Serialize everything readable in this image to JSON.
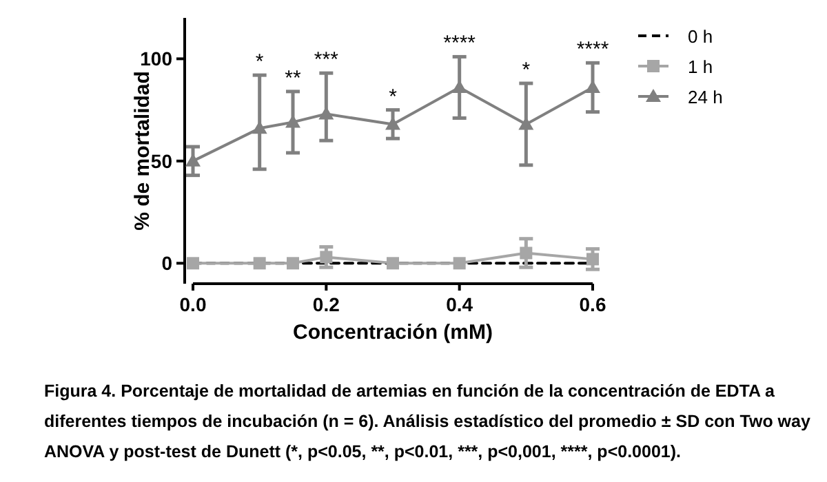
{
  "chart_data": {
    "type": "line",
    "xlabel": "Concentración (mM)",
    "ylabel": "% de mortalidad",
    "x": [
      0,
      0.1,
      0.15,
      0.2,
      0.3,
      0.4,
      0.5,
      0.6
    ],
    "xlim": [
      0,
      0.6
    ],
    "xticks": [
      {
        "value": 0,
        "label": "0.0"
      },
      {
        "value": 0.2,
        "label": "0.2"
      },
      {
        "value": 0.4,
        "label": "0.4"
      },
      {
        "value": 0.6,
        "label": "0.6"
      }
    ],
    "ylim": [
      -10,
      120
    ],
    "yticks": [
      0,
      50,
      100
    ],
    "series": [
      {
        "name": "0 h",
        "color": "#000000",
        "values": [
          0,
          0,
          0,
          0,
          0,
          0,
          0,
          0
        ],
        "marker": "none",
        "line_style": "dashed"
      },
      {
        "name": "1 h",
        "color": "#a6a6a6",
        "values": [
          0,
          0,
          0,
          3,
          0,
          0,
          5,
          2
        ],
        "errors": [
          null,
          null,
          null,
          5,
          null,
          null,
          7,
          5
        ],
        "marker": "square",
        "line_style": "solid"
      },
      {
        "name": "24 h",
        "color": "#808080",
        "values": [
          50,
          66,
          69,
          73,
          68,
          86,
          68,
          86
        ],
        "errors": [
          7,
          [
            46,
            92
          ],
          15,
          [
            60,
            93
          ],
          7,
          15,
          20,
          12
        ],
        "marker": "triangle",
        "line_style": "solid"
      }
    ],
    "legend": "right",
    "grid": false,
    "annotations": [
      {
        "text": "*",
        "x": 0.1,
        "y": 66
      },
      {
        "text": "**",
        "x": 0.15,
        "y": 69
      },
      {
        "text": "***",
        "x": 0.2,
        "y": 73
      },
      {
        "text": "*",
        "x": 0.3,
        "y": 68
      },
      {
        "text": "****",
        "x": 0.4,
        "y": 86
      },
      {
        "text": "*",
        "x": 0.5,
        "y": 68
      },
      {
        "text": "****",
        "x": 0.6,
        "y": 86
      },
      "Figura 4. Porcentaje de mortalidad de artemias en función de la concentración de EDTA a diferentes tiempos de incubación (n = 6). Análisis estadístico del promedio ± SD con Two way ANOVA y post-test de Dunett (*, p<0.05, **, p<0.01, ***, p<0,001, ****, p<0.0001)."
    ]
  }
}
